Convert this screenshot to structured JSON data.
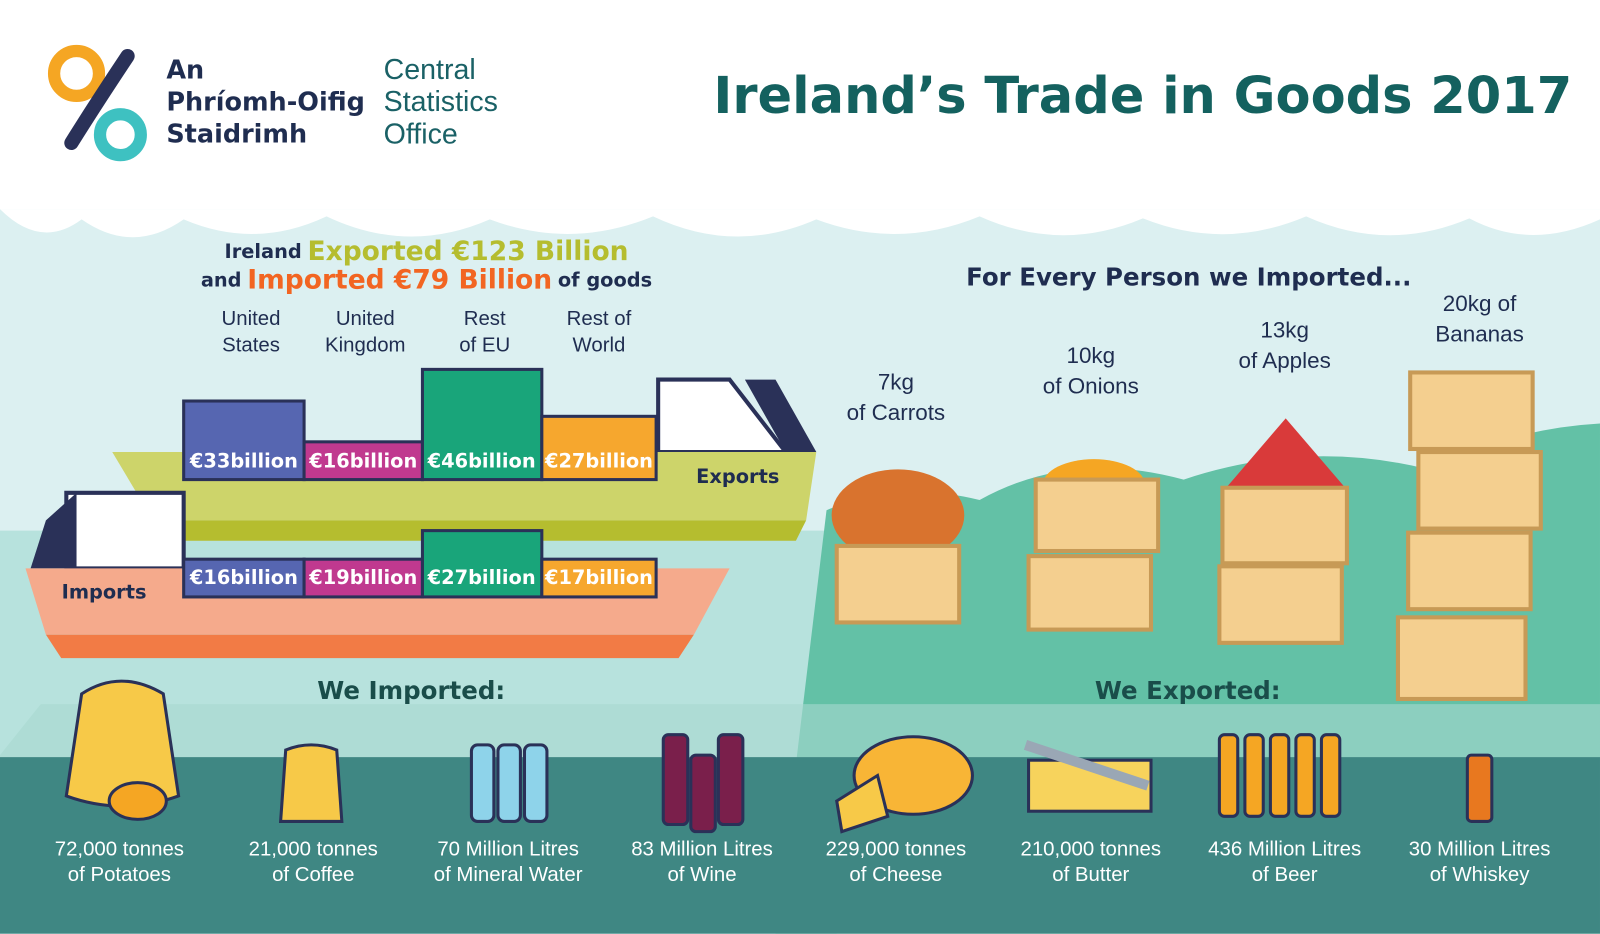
{
  "header": {
    "logo_irish": [
      "An",
      "Phríomh-Oifig",
      "Staidrimh"
    ],
    "logo_english": [
      "Central",
      "Statistics",
      "Office"
    ],
    "title": "Ireland’s Trade in Goods 2017"
  },
  "summary": {
    "line1": {
      "prefix": "Ireland",
      "highlight": "Exported €123 Billion"
    },
    "line2": {
      "prefix": "and",
      "highlight": "Imported €79 Billion",
      "suffix": "of goods"
    }
  },
  "regions": [
    [
      "United",
      "States"
    ],
    [
      "United",
      "Kingdom"
    ],
    [
      "Rest",
      "of EU"
    ],
    [
      "Rest of",
      "World"
    ]
  ],
  "exports": {
    "label": "Exports",
    "values": [
      "€33billion",
      "€16billion",
      "€46billion",
      "€27billion"
    ]
  },
  "imports": {
    "label": "Imports",
    "values": [
      "€16billion",
      "€19billion",
      "€27billion",
      "€17billion"
    ]
  },
  "per_person": {
    "title": "For Every Person we Imported...",
    "items": [
      [
        "7kg",
        "of Carrots"
      ],
      [
        "10kg",
        "of Onions"
      ],
      [
        "13kg",
        "of Apples"
      ],
      [
        "20kg of",
        "Bananas"
      ]
    ]
  },
  "imported": {
    "title": "We Imported:",
    "items": [
      [
        "72,000 tonnes",
        "of Potatoes"
      ],
      [
        "21,000 tonnes",
        "of Coffee"
      ],
      [
        "70 Million Litres",
        "of Mineral Water"
      ],
      [
        "83 Million Litres",
        "of Wine"
      ]
    ]
  },
  "exported": {
    "title": "We Exported:",
    "items": [
      [
        "229,000 tonnes",
        "of Cheese"
      ],
      [
        "210,000 tonnes",
        "of Butter"
      ],
      [
        "436 Million Litres",
        "of Beer"
      ],
      [
        "30 Million Litres",
        "of Whiskey"
      ]
    ]
  }
}
